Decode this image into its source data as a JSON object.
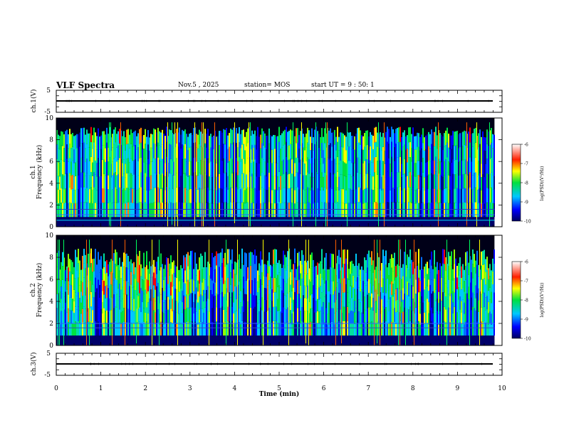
{
  "header": {
    "title": "VLF Spectra",
    "date": "Nov.5 , 2025",
    "station": "station= MOS",
    "start_ut": "start UT = 9 : 50: 1"
  },
  "chart_data": [
    {
      "type": "line",
      "name": "ch1-waveform",
      "ylabel": "ch.1(V)",
      "ylim": [
        -5,
        5
      ],
      "ytick_labels": [
        "5",
        "-5"
      ],
      "xlim": [
        0,
        10
      ],
      "baseline_value": 0
    },
    {
      "type": "heatmap",
      "name": "ch1-spectrogram",
      "ylabel": "ch.1 Frequency (kHz)",
      "ylim": [
        0,
        10
      ],
      "ytick_labels": [
        "0",
        "2",
        "4",
        "6",
        "8",
        "10"
      ],
      "xlim": [
        0,
        10
      ],
      "data_extent_min": 9.83,
      "colorbar": {
        "label": "log(PSD)(V²/Hz)",
        "range": [
          -10,
          -6
        ],
        "tick_labels": [
          "-6",
          "-7",
          "-8",
          "-9",
          "-10"
        ]
      }
    },
    {
      "type": "heatmap",
      "name": "ch2-spectrogram",
      "ylabel": "ch.2 Frequency (kHz)",
      "ylim": [
        0,
        10
      ],
      "ytick_labels": [
        "0",
        "2",
        "4",
        "6",
        "8",
        "10"
      ],
      "xlim": [
        0,
        10
      ],
      "data_extent_min": 9.83,
      "colorbar": {
        "label": "log(PSD)(V²/Hz)",
        "range": [
          -10,
          -6
        ],
        "tick_labels": [
          "-6",
          "-7",
          "-8",
          "-9",
          "-10"
        ]
      }
    },
    {
      "type": "line",
      "name": "ch3-waveform",
      "ylabel": "ch.3(V)",
      "ylim": [
        -5,
        5
      ],
      "ytick_labels": [
        "5",
        "-5"
      ],
      "xlim": [
        0,
        10
      ],
      "baseline_value": 0
    }
  ],
  "xaxis": {
    "label": "Time (min)",
    "range": [
      0,
      10
    ],
    "tick_labels": [
      "0",
      "1",
      "2",
      "3",
      "4",
      "5",
      "6",
      "7",
      "8",
      "9",
      "10"
    ]
  },
  "colors": {
    "low": "#00008b",
    "mid_blue": "#0050ff",
    "cyan": "#00d8ff",
    "green": "#00e040",
    "yellow": "#ffff00",
    "red": "#ff0000",
    "background": "#000000"
  }
}
